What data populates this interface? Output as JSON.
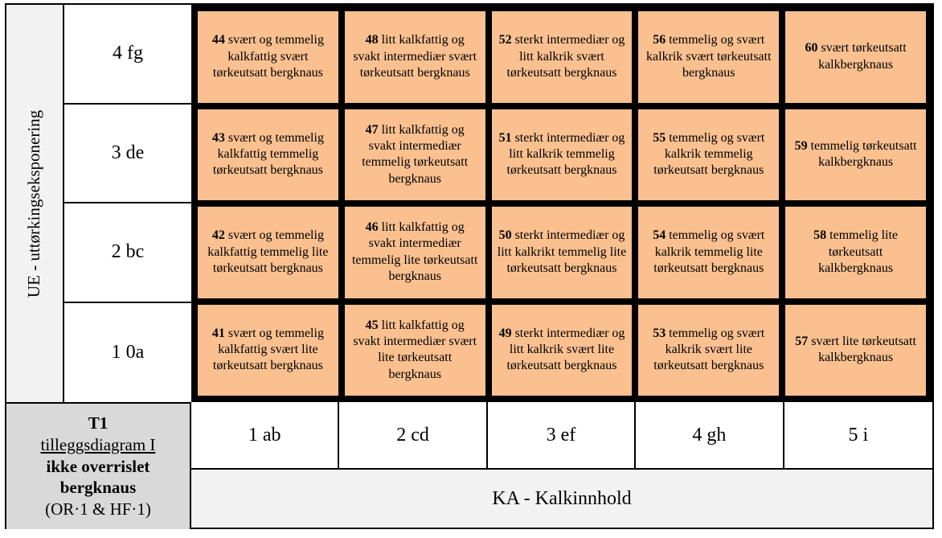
{
  "colors": {
    "cell_bg": "#FAC090",
    "axis_bg": "#F2F2F2",
    "corner_bg": "#D9D9D9",
    "border": "#000000"
  },
  "y_axis": {
    "title": "UE - uttørkingseksponering"
  },
  "x_axis": {
    "title": "KA - Kalkinnhold",
    "labels": [
      "1 ab",
      "2 cd",
      "3 ef",
      "4 gh",
      "5 i"
    ]
  },
  "corner": {
    "title": "T1",
    "subtitle": "tilleggsdiagram I",
    "name": "ikke overrislet bergknaus",
    "codes": "(OR·1 & HF·1)"
  },
  "rows": [
    {
      "label": "4 fg",
      "cells": [
        {
          "num": "44",
          "text": "svært og temmelig kalkfattig svært tørkeutsatt bergknaus"
        },
        {
          "num": "48",
          "text": "litt kalkfattig og svakt intermediær svært tørkeutsatt bergknaus"
        },
        {
          "num": "52",
          "text": "sterkt intermediær og litt kalkrik svært tørkeutsatt bergknaus"
        },
        {
          "num": "56",
          "text": "temmelig og svært kalkrik svært tørkeutsatt bergknaus"
        },
        {
          "num": "60",
          "text": "svært tørkeutsatt kalkbergknaus"
        }
      ]
    },
    {
      "label": "3 de",
      "cells": [
        {
          "num": "43",
          "text": "svært og temmelig kalkfattig temmelig tørkeutsatt bergknaus"
        },
        {
          "num": "47",
          "text": "litt kalkfattig og svakt intermediær temmelig tørkeutsatt bergknaus"
        },
        {
          "num": "51",
          "text": "sterkt intermediær og litt kalkrik temmelig tørkeutsatt bergknaus"
        },
        {
          "num": "55",
          "text": "temmelig og svært kalkrik temmelig tørkeutsatt bergknaus"
        },
        {
          "num": "59",
          "text": "temmelig tørkeutsatt kalkbergknaus"
        }
      ]
    },
    {
      "label": "2 bc",
      "cells": [
        {
          "num": "42",
          "text": "svært og temmelig kalkfattig temmelig lite tørkeutsatt bergknaus"
        },
        {
          "num": "46",
          "text": "litt kalkfattig og svakt intermediær temmelig lite tørkeutsatt bergknaus"
        },
        {
          "num": "50",
          "text": "sterkt intermediær og litt kalkrikt temmelig lite tørkeutsatt bergknaus"
        },
        {
          "num": "54",
          "text": "temmelig og svært kalkrik temmelig lite tørkeutsatt bergknaus"
        },
        {
          "num": "58",
          "text": "temmelig lite tørkeutsatt kalkbergknaus"
        }
      ]
    },
    {
      "label": "1 0a",
      "cells": [
        {
          "num": "41",
          "text": "svært og temmelig kalkfattig svært lite tørkeutsatt bergknaus"
        },
        {
          "num": "45",
          "text": "litt kalkfattig og svakt intermediær svært lite tørkeutsatt bergknaus"
        },
        {
          "num": "49",
          "text": "sterkt intermediær og litt kalkrik svært lite tørkeutsatt bergknaus"
        },
        {
          "num": "53",
          "text": "temmelig og svært kalkrik svært lite tørkeutsatt bergknaus"
        },
        {
          "num": "57",
          "text": "svært lite tørkeutsatt kalkbergknaus"
        }
      ]
    }
  ]
}
